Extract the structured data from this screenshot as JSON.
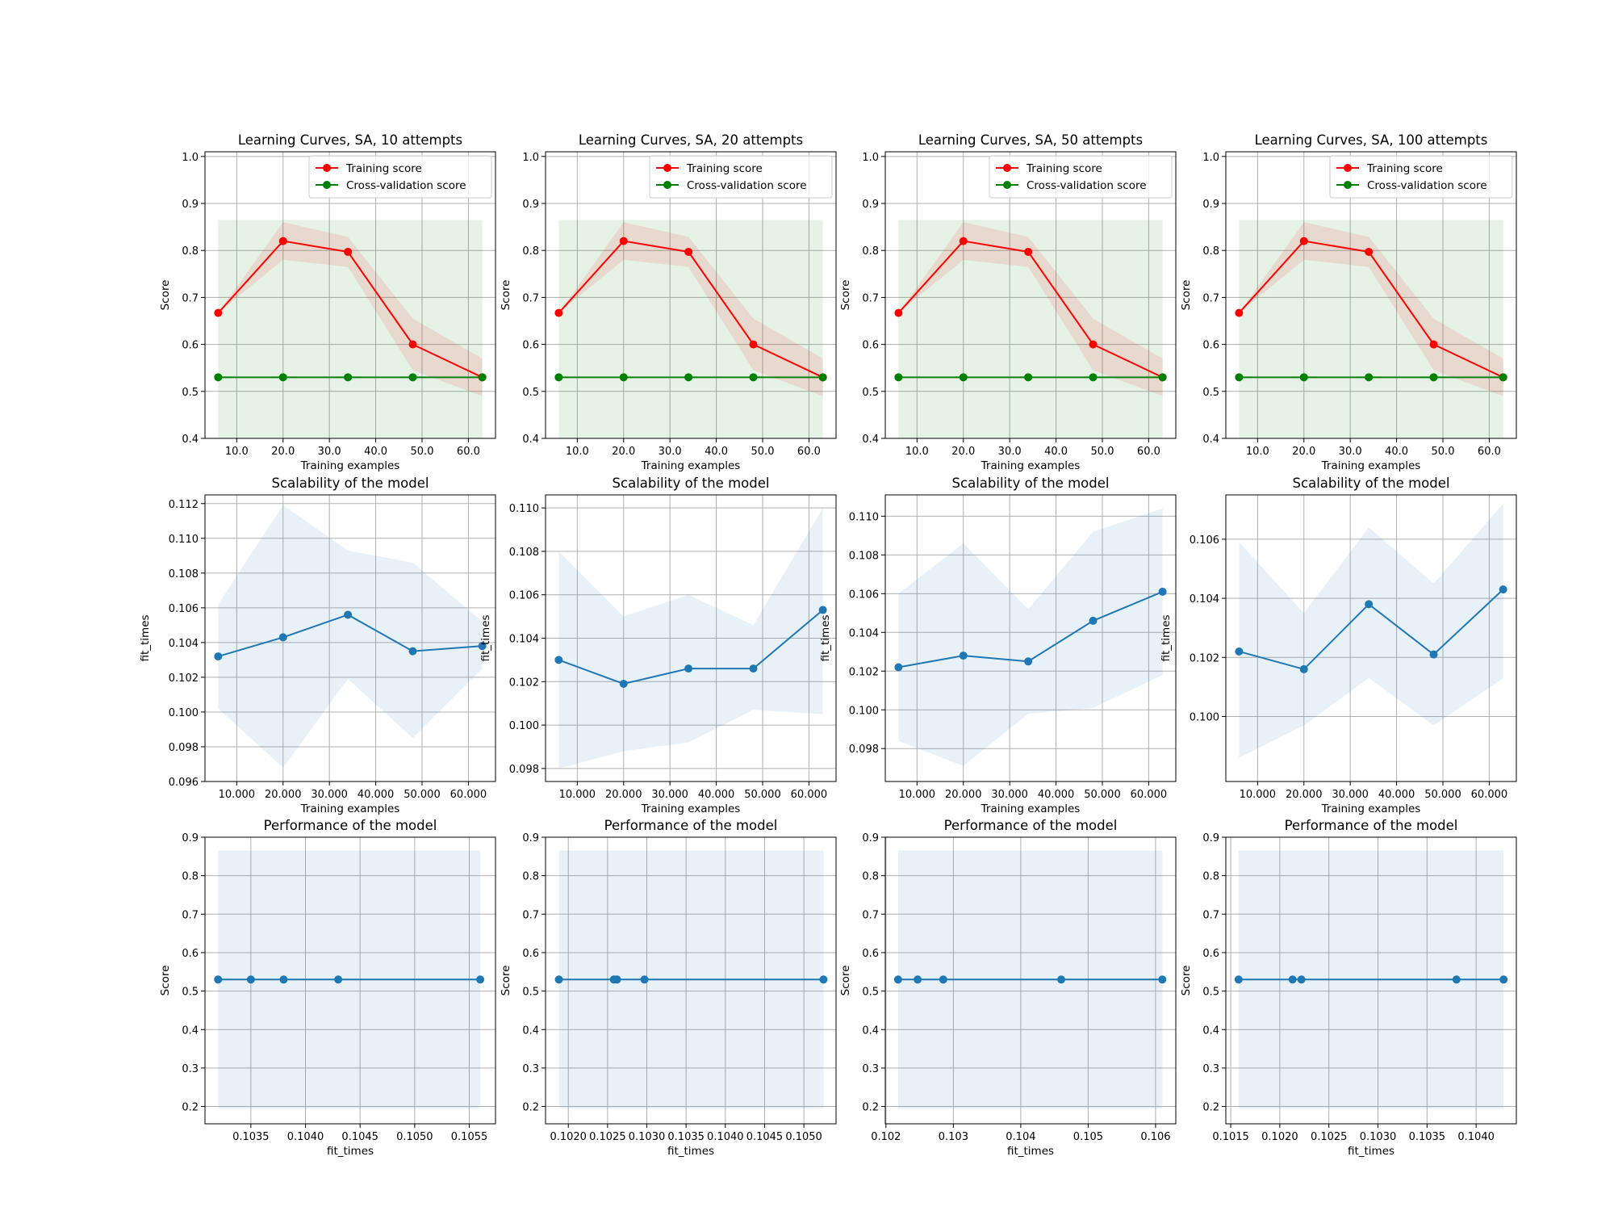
{
  "chart_data": [
    {
      "type": "line",
      "title": "Learning Curves, SA, 10 attempts",
      "xlabel": "Training examples",
      "ylabel": "Score",
      "xlim": [
        3.15,
        65.85
      ],
      "ylim": [
        0.4,
        1.01
      ],
      "xticks": [
        10,
        20,
        30,
        40,
        50,
        60
      ],
      "yticks": [
        0.4,
        0.5,
        0.6,
        0.7,
        0.8,
        0.9,
        1.0
      ],
      "tick_decimals": 1,
      "grid": true,
      "legend": "upper right",
      "series": [
        {
          "name": "Training score",
          "color": "#ff0000",
          "x": [
            6,
            20,
            34,
            48,
            63
          ],
          "y": [
            0.667,
            0.82,
            0.797,
            0.6,
            0.53
          ],
          "band_low": [
            0.667,
            0.78,
            0.765,
            0.545,
            0.49
          ],
          "band_high": [
            0.667,
            0.86,
            0.829,
            0.655,
            0.57
          ]
        },
        {
          "name": "Cross-validation score",
          "color": "#008000",
          "x": [
            6,
            20,
            34,
            48,
            63
          ],
          "y": [
            0.53,
            0.53,
            0.53,
            0.53,
            0.53
          ],
          "band_low": [
            0.395,
            0.395,
            0.395,
            0.395,
            0.395
          ],
          "band_high": [
            0.865,
            0.865,
            0.865,
            0.865,
            0.865
          ]
        }
      ]
    },
    {
      "type": "line",
      "title": "Learning Curves, SA, 20 attempts",
      "xlabel": "Training examples",
      "ylabel": "Score",
      "xlim": [
        3.15,
        65.85
      ],
      "ylim": [
        0.4,
        1.01
      ],
      "xticks": [
        10,
        20,
        30,
        40,
        50,
        60
      ],
      "yticks": [
        0.4,
        0.5,
        0.6,
        0.7,
        0.8,
        0.9,
        1.0
      ],
      "tick_decimals": 1,
      "grid": true,
      "legend": "upper right",
      "series": [
        {
          "name": "Training score",
          "color": "#ff0000",
          "x": [
            6,
            20,
            34,
            48,
            63
          ],
          "y": [
            0.667,
            0.82,
            0.797,
            0.6,
            0.53
          ],
          "band_low": [
            0.667,
            0.78,
            0.765,
            0.545,
            0.49
          ],
          "band_high": [
            0.667,
            0.86,
            0.829,
            0.655,
            0.57
          ]
        },
        {
          "name": "Cross-validation score",
          "color": "#008000",
          "x": [
            6,
            20,
            34,
            48,
            63
          ],
          "y": [
            0.53,
            0.53,
            0.53,
            0.53,
            0.53
          ],
          "band_low": [
            0.395,
            0.395,
            0.395,
            0.395,
            0.395
          ],
          "band_high": [
            0.865,
            0.865,
            0.865,
            0.865,
            0.865
          ]
        }
      ]
    },
    {
      "type": "line",
      "title": "Learning Curves, SA, 50 attempts",
      "xlabel": "Training examples",
      "ylabel": "Score",
      "xlim": [
        3.15,
        65.85
      ],
      "ylim": [
        0.4,
        1.01
      ],
      "xticks": [
        10,
        20,
        30,
        40,
        50,
        60
      ],
      "yticks": [
        0.4,
        0.5,
        0.6,
        0.7,
        0.8,
        0.9,
        1.0
      ],
      "tick_decimals": 1,
      "grid": true,
      "legend": "upper right",
      "series": [
        {
          "name": "Training score",
          "color": "#ff0000",
          "x": [
            6,
            20,
            34,
            48,
            63
          ],
          "y": [
            0.667,
            0.82,
            0.797,
            0.6,
            0.53
          ],
          "band_low": [
            0.667,
            0.78,
            0.765,
            0.545,
            0.49
          ],
          "band_high": [
            0.667,
            0.86,
            0.829,
            0.655,
            0.57
          ]
        },
        {
          "name": "Cross-validation score",
          "color": "#008000",
          "x": [
            6,
            20,
            34,
            48,
            63
          ],
          "y": [
            0.53,
            0.53,
            0.53,
            0.53,
            0.53
          ],
          "band_low": [
            0.395,
            0.395,
            0.395,
            0.395,
            0.395
          ],
          "band_high": [
            0.865,
            0.865,
            0.865,
            0.865,
            0.865
          ]
        }
      ]
    },
    {
      "type": "line",
      "title": "Learning Curves, SA, 100 attempts",
      "xlabel": "Training examples",
      "ylabel": "Score",
      "xlim": [
        3.15,
        65.85
      ],
      "ylim": [
        0.4,
        1.01
      ],
      "xticks": [
        10,
        20,
        30,
        40,
        50,
        60
      ],
      "yticks": [
        0.4,
        0.5,
        0.6,
        0.7,
        0.8,
        0.9,
        1.0
      ],
      "tick_decimals": 1,
      "grid": true,
      "legend": "upper right",
      "series": [
        {
          "name": "Training score",
          "color": "#ff0000",
          "x": [
            6,
            20,
            34,
            48,
            63
          ],
          "y": [
            0.667,
            0.82,
            0.797,
            0.6,
            0.53
          ],
          "band_low": [
            0.667,
            0.78,
            0.765,
            0.545,
            0.49
          ],
          "band_high": [
            0.667,
            0.86,
            0.829,
            0.655,
            0.57
          ]
        },
        {
          "name": "Cross-validation score",
          "color": "#008000",
          "x": [
            6,
            20,
            34,
            48,
            63
          ],
          "y": [
            0.53,
            0.53,
            0.53,
            0.53,
            0.53
          ],
          "band_low": [
            0.395,
            0.395,
            0.395,
            0.395,
            0.395
          ],
          "band_high": [
            0.865,
            0.865,
            0.865,
            0.865,
            0.865
          ]
        }
      ]
    },
    {
      "type": "line",
      "title": "Scalability of the model",
      "xlabel": "Training examples",
      "ylabel": "fit_times",
      "xlim": [
        3.15,
        65.85
      ],
      "ylim": [
        0.096,
        0.1125
      ],
      "xticks": [
        10,
        20,
        30,
        40,
        50,
        60
      ],
      "yticks": [
        0.096,
        0.098,
        0.1,
        0.102,
        0.104,
        0.106,
        0.108,
        0.11,
        0.112
      ],
      "tick_decimals": 3,
      "grid": true,
      "series": [
        {
          "color": "#1f77b4",
          "x": [
            6,
            20,
            34,
            48,
            63
          ],
          "y": [
            0.1032,
            0.1043,
            0.1056,
            0.1035,
            0.1038
          ],
          "band_low": [
            0.1002,
            0.0968,
            0.1019,
            0.0985,
            0.1025
          ],
          "band_high": [
            0.1062,
            0.1119,
            0.1093,
            0.1086,
            0.1052
          ]
        }
      ]
    },
    {
      "type": "line",
      "title": "Scalability of the model",
      "xlabel": "Training examples",
      "ylabel": "fit_times",
      "xlim": [
        3.15,
        65.85
      ],
      "ylim": [
        0.0974,
        0.1106
      ],
      "xticks": [
        10,
        20,
        30,
        40,
        50,
        60
      ],
      "yticks": [
        0.098,
        0.1,
        0.102,
        0.104,
        0.106,
        0.108,
        0.11
      ],
      "tick_decimals": 3,
      "grid": true,
      "series": [
        {
          "color": "#1f77b4",
          "x": [
            6,
            20,
            34,
            48,
            63
          ],
          "y": [
            0.103,
            0.1019,
            0.1026,
            0.1026,
            0.1053
          ],
          "band_low": [
            0.098,
            0.0988,
            0.0992,
            0.1007,
            0.1005
          ],
          "band_high": [
            0.108,
            0.105,
            0.106,
            0.1046,
            0.11
          ]
        }
      ]
    },
    {
      "type": "line",
      "title": "Scalability of the model",
      "xlabel": "Training examples",
      "ylabel": "fit_times",
      "xlim": [
        3.15,
        65.85
      ],
      "ylim": [
        0.0963,
        0.1111
      ],
      "xticks": [
        10,
        20,
        30,
        40,
        50,
        60
      ],
      "yticks": [
        0.098,
        0.1,
        0.102,
        0.104,
        0.106,
        0.108,
        0.11
      ],
      "tick_decimals": 3,
      "grid": true,
      "series": [
        {
          "color": "#1f77b4",
          "x": [
            6,
            20,
            34,
            48,
            63
          ],
          "y": [
            0.1022,
            0.1028,
            0.1025,
            0.1046,
            0.1061
          ],
          "band_low": [
            0.0984,
            0.0971,
            0.0998,
            0.1001,
            0.1018
          ],
          "band_high": [
            0.106,
            0.1086,
            0.1052,
            0.1092,
            0.1104
          ]
        }
      ]
    },
    {
      "type": "line",
      "title": "Scalability of the model",
      "xlabel": "Training examples",
      "ylabel": "fit_times",
      "xlim": [
        3.15,
        65.85
      ],
      "ylim": [
        0.0978,
        0.1075
      ],
      "xticks": [
        10,
        20,
        30,
        40,
        50,
        60
      ],
      "yticks": [
        0.1,
        0.102,
        0.104,
        0.106
      ],
      "tick_decimals": 3,
      "grid": true,
      "series": [
        {
          "color": "#1f77b4",
          "x": [
            6,
            20,
            34,
            48,
            63
          ],
          "y": [
            0.1022,
            0.1016,
            0.1038,
            0.1021,
            0.1043
          ],
          "band_low": [
            0.0986,
            0.0997,
            0.1013,
            0.0997,
            0.1013
          ],
          "band_high": [
            0.1059,
            0.1035,
            0.1064,
            0.1045,
            0.1072
          ]
        }
      ]
    },
    {
      "type": "line",
      "title": "Performance of the model",
      "xlabel": "fit_times",
      "ylabel": "Score",
      "xlim": [
        0.10308,
        0.10574
      ],
      "ylim": [
        0.155,
        0.9
      ],
      "xticks": [
        0.1035,
        0.104,
        0.1045,
        0.105,
        0.1055
      ],
      "yticks": [
        0.2,
        0.3,
        0.4,
        0.5,
        0.6,
        0.7,
        0.8,
        0.9
      ],
      "tick_decimals": 4,
      "ytick_decimals": 1,
      "grid": true,
      "series": [
        {
          "color": "#1f77b4",
          "x": [
            0.1032,
            0.1035,
            0.1038,
            0.1043,
            0.1056
          ],
          "y": [
            0.53,
            0.53,
            0.53,
            0.53,
            0.53
          ],
          "band_low": [
            0.195,
            0.195,
            0.195,
            0.195,
            0.195
          ],
          "band_high": [
            0.865,
            0.865,
            0.865,
            0.865,
            0.865
          ]
        }
      ]
    },
    {
      "type": "line",
      "title": "Performance of the model",
      "xlabel": "fit_times",
      "ylabel": "Score",
      "xlim": [
        0.10171,
        0.10541
      ],
      "ylim": [
        0.155,
        0.9
      ],
      "xticks": [
        0.102,
        0.1025,
        0.103,
        0.1035,
        0.104,
        0.1045,
        0.105
      ],
      "yticks": [
        0.2,
        0.3,
        0.4,
        0.5,
        0.6,
        0.7,
        0.8,
        0.9
      ],
      "tick_decimals": 4,
      "ytick_decimals": 1,
      "grid": true,
      "series": [
        {
          "color": "#1f77b4",
          "x": [
            0.10188,
            0.10258,
            0.10262,
            0.10297,
            0.10525
          ],
          "y": [
            0.53,
            0.53,
            0.53,
            0.53,
            0.53
          ],
          "band_low": [
            0.195,
            0.195,
            0.195,
            0.195,
            0.195
          ],
          "band_high": [
            0.865,
            0.865,
            0.865,
            0.865,
            0.865
          ]
        }
      ]
    },
    {
      "type": "line",
      "title": "Performance of the model",
      "xlabel": "fit_times",
      "ylabel": "Score",
      "xlim": [
        0.10199,
        0.1063
      ],
      "ylim": [
        0.155,
        0.9
      ],
      "xticks": [
        0.102,
        0.103,
        0.104,
        0.105,
        0.106
      ],
      "yticks": [
        0.2,
        0.3,
        0.4,
        0.5,
        0.6,
        0.7,
        0.8,
        0.9
      ],
      "tick_decimals": 3,
      "ytick_decimals": 1,
      "grid": true,
      "series": [
        {
          "color": "#1f77b4",
          "x": [
            0.10218,
            0.10247,
            0.10285,
            0.1046,
            0.1061
          ],
          "y": [
            0.53,
            0.53,
            0.53,
            0.53,
            0.53
          ],
          "band_low": [
            0.195,
            0.195,
            0.195,
            0.195,
            0.195
          ],
          "band_high": [
            0.865,
            0.865,
            0.865,
            0.865,
            0.865
          ]
        }
      ]
    },
    {
      "type": "line",
      "title": "Performance of the model",
      "xlabel": "fit_times",
      "ylabel": "Score",
      "xlim": [
        0.10145,
        0.10441
      ],
      "ylim": [
        0.155,
        0.9
      ],
      "xticks": [
        0.1015,
        0.102,
        0.1025,
        0.103,
        0.1035,
        0.104
      ],
      "yticks": [
        0.2,
        0.3,
        0.4,
        0.5,
        0.6,
        0.7,
        0.8,
        0.9
      ],
      "tick_decimals": 4,
      "ytick_decimals": 1,
      "grid": true,
      "series": [
        {
          "color": "#1f77b4",
          "x": [
            0.10158,
            0.10213,
            0.10222,
            0.1038,
            0.10428
          ],
          "y": [
            0.53,
            0.53,
            0.53,
            0.53,
            0.53
          ],
          "band_low": [
            0.195,
            0.195,
            0.195,
            0.195,
            0.195
          ],
          "band_high": [
            0.865,
            0.865,
            0.865,
            0.865,
            0.865
          ]
        }
      ]
    }
  ]
}
